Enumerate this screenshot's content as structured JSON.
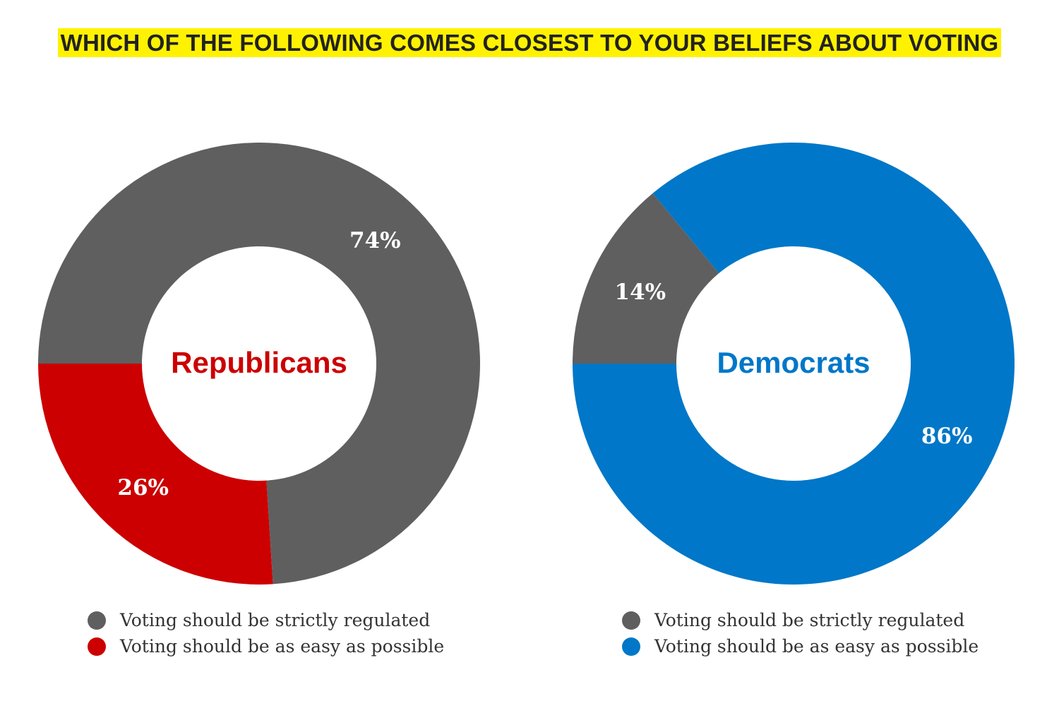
{
  "chart_data": [
    {
      "type": "pie",
      "variant": "donut",
      "title": "WHICH OF THE FOLLOWING COMES CLOSEST TO YOUR BELIEFS ABOUT VOTING",
      "center_label": "Republicans",
      "center_color": "#cc0000",
      "slices": [
        {
          "name": "Voting should be as easy as possible",
          "value": 26,
          "label": "26%",
          "color": "#cc0000"
        },
        {
          "name": "Voting should be strictly regulated",
          "value": 74,
          "label": "74%",
          "color": "#5f5f5f"
        }
      ],
      "legend": [
        {
          "text": "Voting should be strictly regulated",
          "color": "#5f5f5f"
        },
        {
          "text": "Voting should be as easy as possible",
          "color": "#cc0000"
        }
      ]
    },
    {
      "type": "pie",
      "variant": "donut",
      "center_label": "Democrats",
      "center_color": "#0077c8",
      "slices": [
        {
          "name": "Voting should be as easy as possible",
          "value": 86,
          "label": "86%",
          "color": "#0077c8"
        },
        {
          "name": "Voting should be strictly regulated",
          "value": 14,
          "label": "14%",
          "color": "#5f5f5f"
        }
      ],
      "legend": [
        {
          "text": "Voting should be strictly regulated",
          "color": "#5f5f5f"
        },
        {
          "text": "Voting should be as easy as possible",
          "color": "#0077c8"
        }
      ]
    }
  ],
  "title": "WHICH OF THE FOLLOWING COMES CLOSEST TO YOUR BELIEFS ABOUT VOTING"
}
